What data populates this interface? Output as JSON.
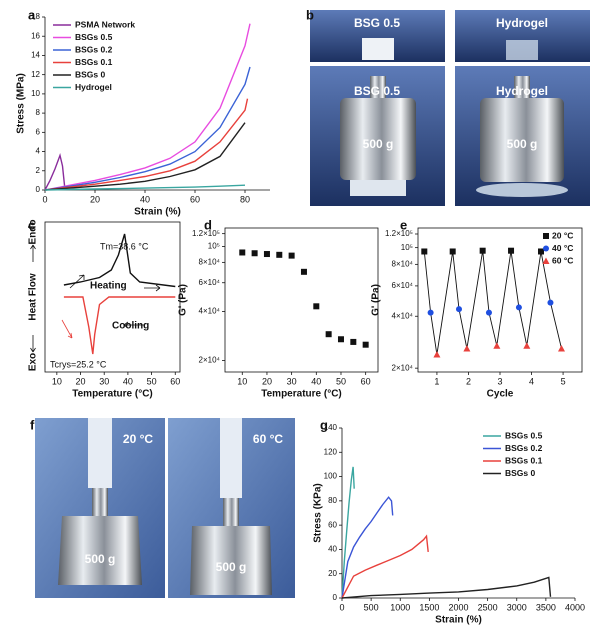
{
  "panel_labels": [
    "a",
    "b",
    "c",
    "d",
    "e",
    "f",
    "g"
  ],
  "photos": {
    "b_top_left": "BSG 0.5",
    "b_top_right": "Hydrogel",
    "b_bottom_left": "BSG 0.5",
    "b_bottom_right": "Hydrogel",
    "b_weight_left": "500 g",
    "b_weight_right": "500 g",
    "f_left_temp": "20 °C",
    "f_right_temp": "60 °C",
    "f_weight_left": "500 g",
    "f_weight_right": "500 g"
  },
  "chart_data": [
    {
      "type": "line",
      "xlabel": "Strain (%)",
      "ylabel": "Stress (MPa)",
      "xlim": [
        0,
        90
      ],
      "ylim": [
        0,
        18
      ],
      "xticks": [
        0,
        20,
        40,
        60,
        80
      ],
      "yticks": [
        0,
        2,
        4,
        6,
        8,
        10,
        12,
        14,
        16,
        18
      ],
      "legend": "upper left",
      "series": [
        {
          "name": "PSMA Network",
          "color": "#8a2d9c",
          "x": [
            0,
            2,
            4,
            6,
            7,
            8
          ],
          "values": [
            0,
            1,
            2.2,
            3.6,
            2.5,
            0
          ]
        },
        {
          "name": "BSGs 0.5",
          "color": "#e84ce0",
          "x": [
            0,
            10,
            20,
            30,
            40,
            50,
            60,
            70,
            80,
            82
          ],
          "values": [
            0,
            0.5,
            1.0,
            1.6,
            2.3,
            3.3,
            5,
            8.5,
            15,
            17.3
          ]
        },
        {
          "name": "BSGs 0.2",
          "color": "#3b63d6",
          "x": [
            0,
            10,
            20,
            30,
            40,
            50,
            60,
            70,
            80,
            82
          ],
          "values": [
            0,
            0.4,
            0.8,
            1.3,
            1.9,
            2.7,
            4,
            6.5,
            11,
            12.8
          ]
        },
        {
          "name": "BSGs 0.1",
          "color": "#e8413c",
          "x": [
            0,
            10,
            20,
            30,
            40,
            50,
            60,
            70,
            80,
            81
          ],
          "values": [
            0,
            0.3,
            0.6,
            1.0,
            1.4,
            2.0,
            3,
            5,
            8.3,
            9.5
          ]
        },
        {
          "name": "BSGs 0",
          "color": "#222222",
          "x": [
            0,
            10,
            20,
            30,
            40,
            50,
            60,
            70,
            80
          ],
          "values": [
            0,
            0.2,
            0.4,
            0.6,
            0.9,
            1.4,
            2.1,
            3.5,
            7
          ]
        },
        {
          "name": "Hydrogel",
          "color": "#3aa6a0",
          "x": [
            0,
            10,
            20,
            30,
            40,
            50,
            60,
            70,
            80
          ],
          "values": [
            0,
            0.05,
            0.1,
            0.15,
            0.2,
            0.25,
            0.3,
            0.4,
            0.5
          ]
        }
      ]
    },
    {
      "type": "line",
      "xlabel": "Temperature (°C)",
      "ylabel": "Heat Flow",
      "y_high": "Endo",
      "y_low": "Exo",
      "xlim": [
        5,
        62
      ],
      "ylim": [
        0,
        1
      ],
      "xticks": [
        10,
        20,
        30,
        40,
        50,
        60
      ],
      "annotations": [
        "Tm=38.6 °C",
        "Tcrys=25.2 °C"
      ],
      "series": [
        {
          "name": "Heating",
          "color": "#111111",
          "x": [
            13,
            20,
            28,
            33,
            36,
            38.6,
            41,
            45,
            60
          ],
          "values": [
            0.58,
            0.6,
            0.63,
            0.68,
            0.78,
            0.92,
            0.66,
            0.6,
            0.57
          ]
        },
        {
          "name": "Cooling",
          "color": "#e8413c",
          "x": [
            60,
            45,
            32,
            28,
            26,
            25.2,
            23.5,
            21,
            13
          ],
          "values": [
            0.5,
            0.5,
            0.5,
            0.45,
            0.25,
            0.12,
            0.3,
            0.5,
            0.5
          ]
        }
      ]
    },
    {
      "type": "scatter",
      "xlabel": "Temperature (°C)",
      "ylabel": "G' (Pa)",
      "log_y": true,
      "color": "#111111",
      "xlim": [
        3,
        65
      ],
      "ylim": [
        17000,
        130000
      ],
      "xticks": [
        10,
        20,
        30,
        40,
        50,
        60
      ],
      "yticks": [
        {
          "value": 20000,
          "label": "2×10⁴"
        },
        {
          "value": 40000,
          "label": "4×10⁴"
        },
        {
          "value": 60000,
          "label": "6×10⁴"
        },
        {
          "value": 80000,
          "label": "8×10⁴"
        },
        {
          "value": 100000,
          "label": "10⁵"
        },
        {
          "value": 120000,
          "label": "1.2×10⁵"
        }
      ],
      "x": [
        10,
        15,
        20,
        25,
        30,
        35,
        40,
        45,
        50,
        55,
        60
      ],
      "values": [
        92000,
        91000,
        90000,
        89000,
        88000,
        70000,
        43000,
        29000,
        27000,
        26000,
        25000
      ]
    },
    {
      "type": "scatter",
      "connect": true,
      "xlabel": "Cycle",
      "ylabel": "G' (Pa)",
      "log_y": true,
      "legend": "upper right",
      "xlim": [
        0.4,
        5.6
      ],
      "ylim": [
        19000,
        130000
      ],
      "xticks": [
        1,
        2,
        3,
        4,
        5
      ],
      "yticks": [
        {
          "value": 20000,
          "label": "2×10⁴"
        },
        {
          "value": 40000,
          "label": "4×10⁴"
        },
        {
          "value": 60000,
          "label": "6×10⁴"
        },
        {
          "value": 80000,
          "label": "8×10⁴"
        },
        {
          "value": 100000,
          "label": "10⁵"
        },
        {
          "value": 120000,
          "label": "1.2×10⁵"
        }
      ],
      "series": [
        {
          "name": "20 °C",
          "color": "#111111",
          "marker": "square",
          "x": [
            0.6,
            1.5,
            2.45,
            3.35,
            4.3
          ],
          "values": [
            95000,
            95000,
            96000,
            96000,
            95000
          ]
        },
        {
          "name": "40 °C",
          "color": "#1f4fe0",
          "marker": "circle",
          "x": [
            0.8,
            1.7,
            2.65,
            3.6,
            4.6
          ],
          "values": [
            42000,
            44000,
            42000,
            45000,
            48000
          ]
        },
        {
          "name": "60 °C",
          "color": "#e8413c",
          "marker": "triangle",
          "x": [
            1.0,
            1.95,
            2.9,
            3.85,
            4.95
          ],
          "values": [
            24000,
            26000,
            27000,
            27000,
            26000
          ]
        }
      ]
    },
    {
      "type": "line",
      "xlabel": "Strain (%)",
      "ylabel": "Stress (KPa)",
      "xlim": [
        0,
        4000
      ],
      "ylim": [
        0,
        140
      ],
      "legend": "upper right",
      "xticks": [
        0,
        500,
        1000,
        1500,
        2000,
        2500,
        3000,
        3500,
        4000
      ],
      "yticks": [
        0,
        20,
        40,
        60,
        80,
        100,
        120,
        140
      ],
      "series": [
        {
          "name": "BSGs 0.5",
          "color": "#3aa6a0",
          "x": [
            0,
            40,
            80,
            120,
            160,
            190,
            200,
            210
          ],
          "values": [
            0,
            30,
            55,
            78,
            97,
            108,
            100,
            90
          ]
        },
        {
          "name": "BSGs 0.2",
          "color": "#3b55d6",
          "x": [
            0,
            100,
            200,
            300,
            400,
            500,
            600,
            700,
            800,
            850,
            870
          ],
          "values": [
            0,
            30,
            42,
            50,
            57,
            63,
            70,
            77,
            83,
            80,
            68
          ]
        },
        {
          "name": "BSGs 0.1",
          "color": "#e8413c",
          "x": [
            0,
            200,
            400,
            600,
            800,
            1000,
            1200,
            1400,
            1450,
            1480
          ],
          "values": [
            0,
            18,
            23,
            27,
            31,
            35,
            40,
            48,
            51,
            38
          ]
        },
        {
          "name": "BSGs 0",
          "color": "#222222",
          "x": [
            0,
            500,
            1000,
            1500,
            2000,
            2500,
            3000,
            3300,
            3550,
            3580
          ],
          "values": [
            0,
            2,
            3,
            4,
            5,
            7,
            10,
            13,
            17,
            1
          ]
        }
      ]
    }
  ]
}
